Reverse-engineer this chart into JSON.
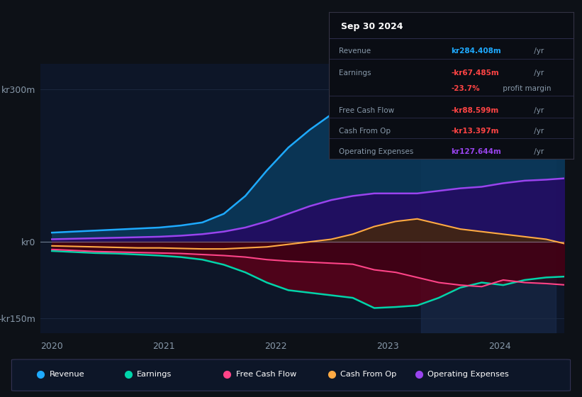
{
  "bg_color": "#0d1117",
  "plot_bg_color": "#0d1628",
  "grid_color": "#1e2d45",
  "text_color": "#8899aa",
  "title_color": "#ffffff",
  "series": {
    "Revenue": {
      "color": "#1eaaff",
      "fill_color": "#0a3a5c",
      "fill_alpha": 0.85
    },
    "Earnings": {
      "color": "#00d4aa",
      "fill_color": "#003322",
      "fill_alpha": 0.5
    },
    "Free Cash Flow": {
      "color": "#ff4488",
      "fill_color": "#5a0020",
      "fill_alpha": 0.6
    },
    "Cash From Op": {
      "color": "#ffaa44",
      "fill_color": "#4a2a00",
      "fill_alpha": 0.5
    },
    "Operating Expenses": {
      "color": "#9944ee",
      "fill_color": "#2a0066",
      "fill_alpha": 0.7
    }
  },
  "tooltip": {
    "title": "Sep 30 2024",
    "bg_color": "#0a0d14",
    "border_color": "#333344",
    "rows": [
      {
        "label": "Revenue",
        "value": "kr284.408m",
        "unit": " /yr",
        "value_color": "#1eaaff"
      },
      {
        "label": "Earnings",
        "value": "-kr67.485m",
        "unit": " /yr",
        "value_color": "#ff4444"
      },
      {
        "label": "",
        "value": "-23.7%",
        "unit": " profit margin",
        "value_color": "#ff4444"
      },
      {
        "label": "Free Cash Flow",
        "value": "-kr88.599m",
        "unit": " /yr",
        "value_color": "#ff4444"
      },
      {
        "label": "Cash From Op",
        "value": "-kr13.397m",
        "unit": " /yr",
        "value_color": "#ff4444"
      },
      {
        "label": "Operating Expenses",
        "value": "kr127.644m",
        "unit": " /yr",
        "value_color": "#9944ee"
      }
    ]
  },
  "legend_items": [
    {
      "label": "Revenue",
      "color": "#1eaaff"
    },
    {
      "label": "Earnings",
      "color": "#00d4aa"
    },
    {
      "label": "Free Cash Flow",
      "color": "#ff4488"
    },
    {
      "label": "Cash From Op",
      "color": "#ffaa44"
    },
    {
      "label": "Operating Expenses",
      "color": "#9944ee"
    }
  ],
  "x_data": [
    0,
    0.2,
    0.4,
    0.6,
    0.8,
    1.0,
    1.2,
    1.4,
    1.6,
    1.8,
    2.0,
    2.2,
    2.4,
    2.6,
    2.8,
    3.0,
    3.2,
    3.4,
    3.6,
    3.8,
    4.0,
    4.2,
    4.4,
    4.6,
    4.8,
    5.0
  ],
  "revenue_y": [
    18,
    20,
    22,
    24,
    26,
    28,
    32,
    38,
    55,
    90,
    140,
    185,
    220,
    250,
    265,
    270,
    265,
    268,
    272,
    265,
    270,
    280,
    275,
    278,
    282,
    284
  ],
  "earnings_y": [
    -18,
    -20,
    -22,
    -23,
    -25,
    -27,
    -30,
    -35,
    -45,
    -60,
    -80,
    -95,
    -100,
    -105,
    -110,
    -130,
    -128,
    -125,
    -110,
    -90,
    -80,
    -85,
    -75,
    -70,
    -68,
    -67
  ],
  "fcf_y": [
    -15,
    -17,
    -19,
    -20,
    -21,
    -22,
    -23,
    -25,
    -27,
    -30,
    -35,
    -38,
    -40,
    -42,
    -44,
    -55,
    -60,
    -70,
    -80,
    -85,
    -88,
    -75,
    -80,
    -82,
    -85,
    -88
  ],
  "cashop_y": [
    -8,
    -9,
    -10,
    -11,
    -12,
    -12,
    -13,
    -14,
    -14,
    -12,
    -10,
    -5,
    0,
    5,
    15,
    30,
    40,
    45,
    35,
    25,
    20,
    15,
    10,
    5,
    -5,
    -13
  ],
  "opex_y": [
    5,
    6,
    7,
    8,
    9,
    10,
    12,
    15,
    20,
    28,
    40,
    55,
    70,
    82,
    90,
    95,
    95,
    95,
    100,
    105,
    108,
    115,
    120,
    122,
    125,
    127
  ],
  "xlim": [
    2019.9,
    2024.58
  ],
  "ylim": [
    -180,
    350
  ],
  "yticks": [
    -150,
    0,
    300
  ],
  "ytick_labels": [
    "-kr150m",
    "kr0",
    "kr300m"
  ],
  "xticks": [
    2020,
    2021,
    2022,
    2023,
    2024
  ],
  "xtick_labels": [
    "2020",
    "2021",
    "2022",
    "2023",
    "2024"
  ],
  "highlight_span": [
    2023.3,
    2024.5
  ]
}
